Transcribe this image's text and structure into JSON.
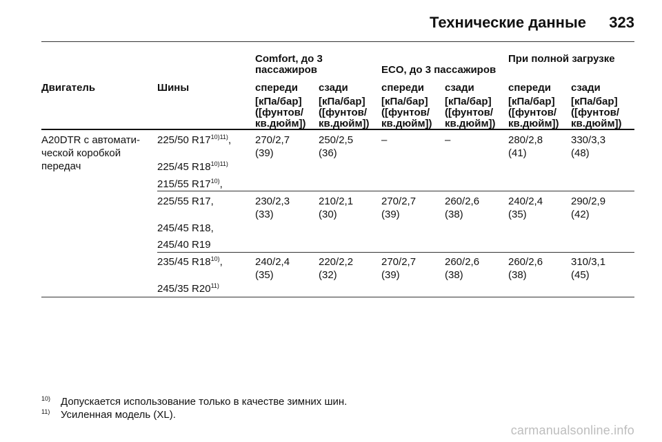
{
  "header": {
    "title": "Технические данные",
    "page_number": "323"
  },
  "table": {
    "groups": {
      "comfort": "Comfort, до 3 пассажиров",
      "eco": "ECO, до 3 пассажиров",
      "full": "При полной загрузке"
    },
    "columns": {
      "engine": "Двигатель",
      "tyres": "Шины",
      "front": "спереди",
      "rear": "сзади"
    },
    "unit": "[кПа/бар] ([фунтов/ кв.дюйм])",
    "engine": "A20DTR с автомати-ческой коробкой передач",
    "rows": [
      {
        "tyres": [
          {
            "size": "225/50 R17",
            "note": "10)11)",
            "trail": ","
          },
          {
            "size": "225/45 R18",
            "note": "10)11)",
            "trail": ""
          },
          {
            "size": "215/55 R17",
            "note": "10)",
            "trail": ","
          }
        ],
        "values": [
          [
            "270/2,7",
            "(39)"
          ],
          [
            "250/2,5",
            "(36)"
          ],
          [
            "–",
            ""
          ],
          [
            "–",
            ""
          ],
          [
            "280/2,8",
            "(41)"
          ],
          [
            "330/3,3",
            "(48)"
          ]
        ]
      },
      {
        "tyres": [
          {
            "size": "225/55 R17,",
            "note": "",
            "trail": ""
          },
          {
            "size": "245/45 R18,",
            "note": "",
            "trail": ""
          },
          {
            "size": "245/40 R19",
            "note": "",
            "trail": ""
          }
        ],
        "values": [
          [
            "230/2,3",
            "(33)"
          ],
          [
            "210/2,1",
            "(30)"
          ],
          [
            "270/2,7",
            "(39)"
          ],
          [
            "260/2,6",
            "(38)"
          ],
          [
            "240/2,4",
            "(35)"
          ],
          [
            "290/2,9",
            "(42)"
          ]
        ]
      },
      {
        "tyres": [
          {
            "size": "235/45 R18",
            "note": "10)",
            "trail": ","
          },
          {
            "size": "245/35 R20",
            "note": "11)",
            "trail": ""
          }
        ],
        "values": [
          [
            "240/2,4",
            "(35)"
          ],
          [
            "220/2,2",
            "(32)"
          ],
          [
            "270/2,7",
            "(39)"
          ],
          [
            "260/2,6",
            "(38)"
          ],
          [
            "260/2,6",
            "(38)"
          ],
          [
            "310/3,1",
            "(45)"
          ]
        ]
      }
    ]
  },
  "footnotes": [
    {
      "mark": "10)",
      "text": "Допускается использование только в качестве зимних шин."
    },
    {
      "mark": "11)",
      "text": "Усиленная модель (XL)."
    }
  ],
  "watermark": "carmanualsonline.info"
}
